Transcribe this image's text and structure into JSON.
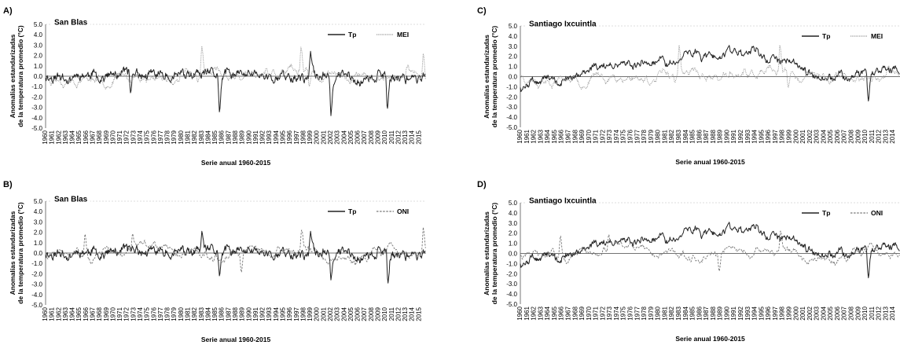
{
  "chart_data": [
    {
      "panel": "A)",
      "type": "line",
      "title": "San Blas",
      "xlabel": "Serie anual 1960-2015",
      "ylabel": [
        "Anomalías estandarizadas",
        "de la temperatura promedio (°C)"
      ],
      "ylim": [
        -5,
        5
      ],
      "yticks": [
        "5.0",
        "4.0",
        "3.0",
        "2.0",
        "1.0",
        "0.0",
        "-1.0",
        "-2.0",
        "-3.0",
        "-4.0",
        "-5.0"
      ],
      "x_start": 1960,
      "x_end": 2015,
      "legend_position": "top-right",
      "series": [
        {
          "name": "Tp",
          "color": "#222222",
          "style": "solid",
          "seed": 11,
          "scale": 0.75,
          "wander": 0.55,
          "spikes": [
            [
              1985.6,
              -3.6
            ],
            [
              2002.0,
              -3.8
            ],
            [
              1999.0,
              2.4
            ],
            [
              2010.3,
              -3.3
            ],
            [
              1972.5,
              -1.6
            ]
          ]
        },
        {
          "name": "MEI",
          "color": "#9a9a9a",
          "style": "dotted",
          "seed": 23,
          "scale": 0.4,
          "wander": 1.0,
          "spikes": [
            [
              1983.0,
              2.9
            ],
            [
              1997.6,
              2.9
            ],
            [
              2015.6,
              2.3
            ],
            [
              1998.8,
              -1.1
            ]
          ]
        }
      ]
    },
    {
      "panel": "B)",
      "type": "line",
      "title": "San Blas",
      "xlabel": "Serie anual 1960-2015",
      "ylabel": [
        "Anomalías estandarizadas",
        "de la temperatura promedio (°C)"
      ],
      "ylim": [
        -5,
        5
      ],
      "yticks": [
        "5.0",
        "4.0",
        "3.0",
        "2.0",
        "1.0",
        "0.0",
        "-1.0",
        "-2.0",
        "-3.0",
        "-4.0",
        "-5.0"
      ],
      "x_start": 1960,
      "x_end": 2015,
      "legend_position": "top-right",
      "series": [
        {
          "name": "Tp",
          "color": "#222222",
          "style": "solid",
          "seed": 11,
          "scale": 0.75,
          "wander": 0.55,
          "spikes": [
            [
              1985.6,
              -2.3
            ],
            [
              2002.0,
              -2.6
            ],
            [
              1999.0,
              2.1
            ],
            [
              2010.4,
              -3.0
            ],
            [
              1983.0,
              2.1
            ]
          ]
        },
        {
          "name": "ONI",
          "color": "#777777",
          "style": "dashed",
          "seed": 31,
          "scale": 0.3,
          "wander": 1.05,
          "spikes": [
            [
              1997.7,
              2.4
            ],
            [
              2015.6,
              2.6
            ],
            [
              1965.8,
              2.0
            ],
            [
              1972.8,
              2.0
            ],
            [
              1988.8,
              -2.0
            ]
          ]
        }
      ]
    },
    {
      "panel": "C)",
      "type": "line",
      "title": "Santiago Ixcuintla",
      "xlabel": "Serie anual 1960-2015",
      "ylabel": [
        "Anomalías estandarizadas",
        "de la temperatura promedio (°C)"
      ],
      "ylim": [
        -5,
        5
      ],
      "yticks": [
        "5.0",
        "4.0",
        "3.0",
        "2.0",
        "1.0",
        "0.0",
        "-1.0",
        "-2.0",
        "-3.0",
        "-4.0",
        "-5.0"
      ],
      "x_start": 1960,
      "x_end": 2014,
      "legend_position": "top-right",
      "series": [
        {
          "name": "Tp",
          "color": "#222222",
          "style": "solid",
          "seed": 47,
          "scale": 0.55,
          "wander": 0.7,
          "trend": [
            [
              1960,
              -0.4
            ],
            [
              1977,
              0.6
            ],
            [
              1993,
              1.2
            ],
            [
              2005,
              0.0
            ],
            [
              2014,
              0.2
            ]
          ],
          "spikes": [
            [
              1991.0,
              2.8
            ],
            [
              1993.6,
              3.0
            ],
            [
              2010.4,
              -2.5
            ],
            [
              1960.1,
              -1.5
            ]
          ]
        },
        {
          "name": "MEI",
          "color": "#9a9a9a",
          "style": "dotted",
          "seed": 23,
          "scale": 0.4,
          "wander": 1.0,
          "spikes": [
            [
              1983.0,
              3.1
            ],
            [
              1997.6,
              3.2
            ],
            [
              1998.8,
              -1.2
            ]
          ]
        }
      ]
    },
    {
      "panel": "D)",
      "type": "line",
      "title": "Santiago Ixcuintla",
      "xlabel": "Serie anual 1960-2015",
      "ylabel": [
        "Anomalías estandarizadas",
        "de la temperatura promedio (°C)"
      ],
      "ylim": [
        -5,
        5
      ],
      "yticks": [
        "5.0",
        "4.0",
        "3.0",
        "2.0",
        "1.0",
        "0.0",
        "-1.0",
        "-2.0",
        "-3.0",
        "-4.0",
        "-5.0"
      ],
      "x_start": 1960,
      "x_end": 2014,
      "legend_position": "top-right",
      "series": [
        {
          "name": "Tp",
          "color": "#222222",
          "style": "solid",
          "seed": 47,
          "scale": 0.55,
          "wander": 0.7,
          "trend": [
            [
              1960,
              -0.4
            ],
            [
              1977,
              0.6
            ],
            [
              1993,
              1.2
            ],
            [
              2005,
              0.0
            ],
            [
              2014,
              0.2
            ]
          ],
          "spikes": [
            [
              1991.0,
              2.6
            ],
            [
              1993.6,
              2.8
            ],
            [
              2010.4,
              -2.5
            ],
            [
              1960.1,
              -1.4
            ]
          ]
        },
        {
          "name": "ONI",
          "color": "#777777",
          "style": "dashed",
          "seed": 31,
          "scale": 0.3,
          "wander": 1.05,
          "spikes": [
            [
              1997.7,
              2.4
            ],
            [
              1972.8,
              2.0
            ],
            [
              1965.8,
              1.9
            ],
            [
              1988.8,
              -1.9
            ]
          ]
        }
      ]
    }
  ]
}
